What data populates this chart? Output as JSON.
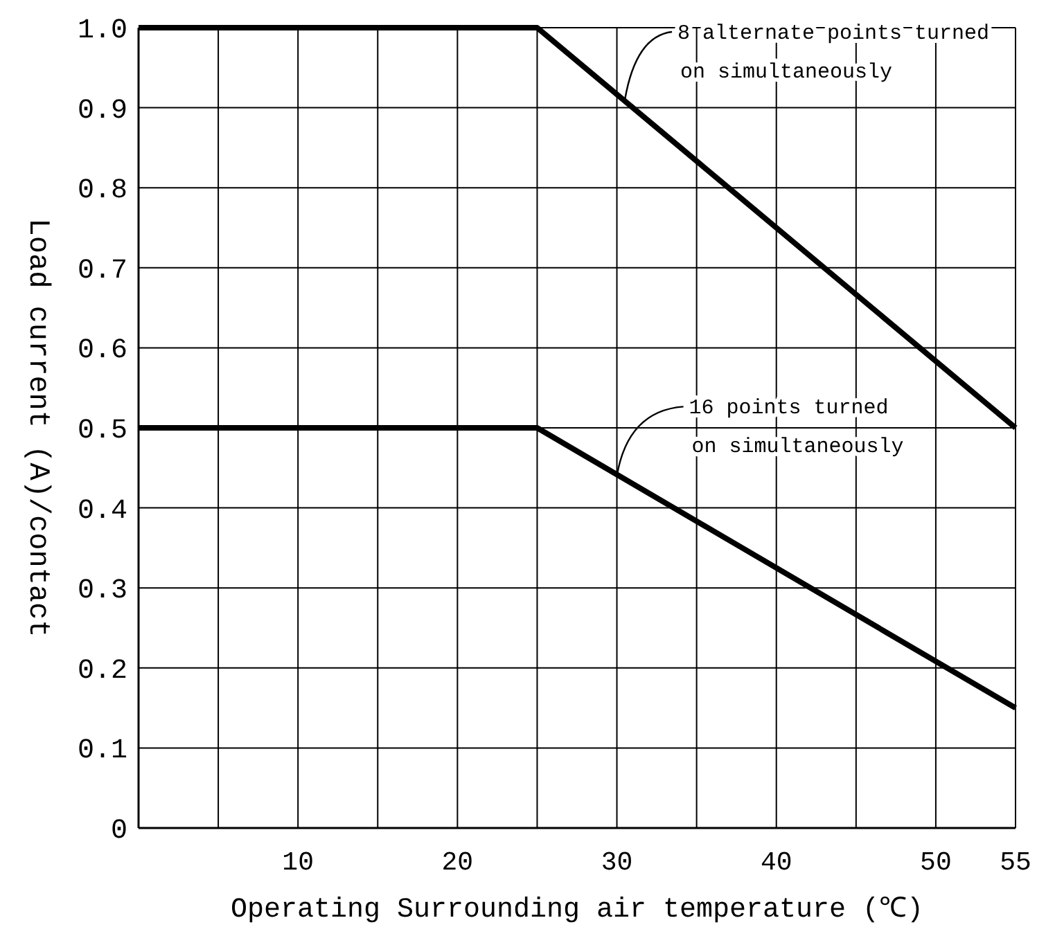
{
  "chart_data": {
    "type": "line",
    "xlabel": "Operating Surrounding air temperature (℃)",
    "ylabel": "Load current (A)/contact",
    "series": [
      {
        "color": "#000000",
        "x": [
          0,
          25,
          55
        ],
        "values": [
          1,
          1,
          0.5
        ]
      },
      {
        "color": "#000000",
        "x": [
          0,
          25,
          55
        ],
        "values": [
          0.5,
          0.5,
          0.15
        ]
      }
    ],
    "xlim": [
      0,
      55
    ],
    "xticks": [
      {
        "value": 5,
        "label": null
      },
      10,
      {
        "value": 15,
        "label": null
      },
      20,
      {
        "value": 25,
        "label": null
      },
      30,
      {
        "value": 35,
        "label": null
      },
      40,
      {
        "value": 45,
        "label": null
      },
      50,
      55
    ],
    "ylim": [
      0,
      1
    ],
    "yticks": [
      0,
      0.1,
      0.2,
      0.3,
      0.4,
      0.5,
      0.6,
      0.7,
      0.8,
      0.9,
      {
        "value": 1,
        "label": "1.0"
      }
    ],
    "grid": true,
    "marker": "none",
    "line_style": "solid",
    "annotations": [
      {
        "text": "8 alternate points turned\non simultaneously",
        "x": 30.5,
        "y": 0.91
      },
      {
        "text": "16 points turned\non simultaneously",
        "x": 30,
        "y": 0.44
      }
    ]
  }
}
